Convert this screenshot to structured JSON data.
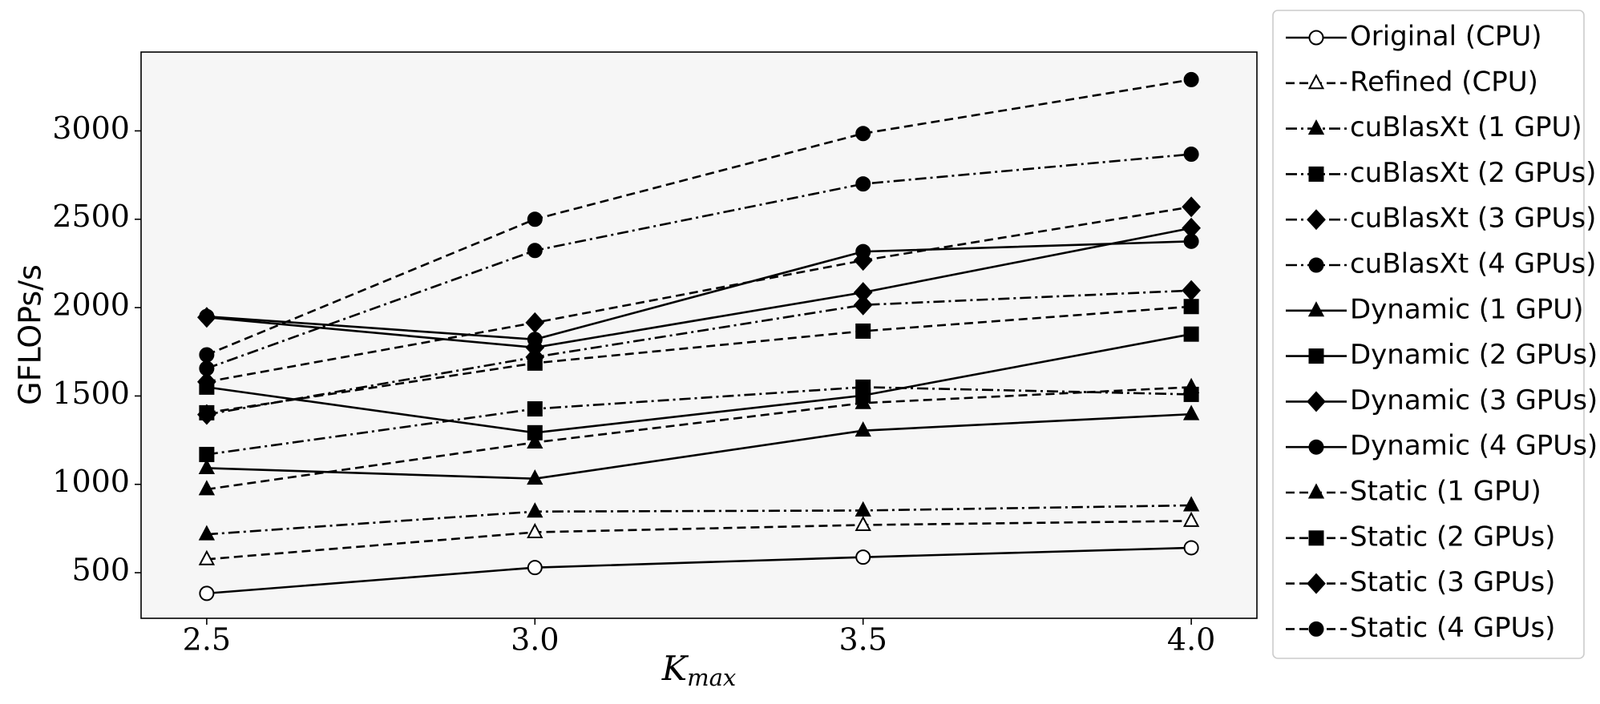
{
  "chart_data": {
    "type": "line",
    "xlabel": "K",
    "xlabel_subscript": "max",
    "ylabel": "GFLOPs/s",
    "x": [
      2.5,
      3.0,
      3.5,
      4.0
    ],
    "xlim": [
      2.4,
      4.1
    ],
    "xticks": [
      2.5,
      {
        "value": 3.0,
        "label": "3.0"
      },
      3.5,
      {
        "value": 4.0,
        "label": "4.0"
      }
    ],
    "ylim": [
      242,
      3446
    ],
    "yticks": [
      500,
      1000,
      1500,
      2000,
      2500,
      3000
    ],
    "legend": "outside-right",
    "series": [
      {
        "name": "Original (CPU)",
        "color": "#000000",
        "dash": "solid",
        "marker": "open-circle",
        "values": [
          383,
          529,
          588,
          641
        ]
      },
      {
        "name": "Refined (CPU)",
        "color": "#000000",
        "dash": "dashed",
        "marker": "open-triangle",
        "values": [
          576,
          729,
          770,
          793
        ]
      },
      {
        "name": "cuBlasXt (1 GPU)",
        "color": "#000000",
        "dash": "dashdot",
        "marker": "triangle",
        "values": [
          717,
          846,
          852,
          881
        ]
      },
      {
        "name": "cuBlasXt (2 GPUs)",
        "color": "#000000",
        "dash": "dashdot",
        "marker": "square",
        "values": [
          1169,
          1427,
          1550,
          1509
        ]
      },
      {
        "name": "cuBlasXt (3 GPUs)",
        "color": "#000000",
        "dash": "dashdot",
        "marker": "diamond",
        "values": [
          1395,
          1720,
          2015,
          2097
        ]
      },
      {
        "name": "cuBlasXt (4 GPUs)",
        "color": "#000000",
        "dash": "dashdot",
        "marker": "circle",
        "values": [
          1656,
          2323,
          2700,
          2868
        ]
      },
      {
        "name": "Dynamic (1 GPU)",
        "color": "#000000",
        "dash": "solid",
        "marker": "triangle",
        "values": [
          1092,
          1032,
          1304,
          1397
        ]
      },
      {
        "name": "Dynamic (2 GPUs)",
        "color": "#000000",
        "dash": "solid",
        "marker": "square",
        "values": [
          1550,
          1292,
          1503,
          1850
        ]
      },
      {
        "name": "Dynamic (3 GPUs)",
        "color": "#000000",
        "dash": "solid",
        "marker": "diamond",
        "values": [
          1945,
          1774,
          2086,
          2450
        ]
      },
      {
        "name": "Dynamic (4 GPUs)",
        "color": "#000000",
        "dash": "solid",
        "marker": "circle",
        "values": [
          1950,
          1820,
          2317,
          2375
        ]
      },
      {
        "name": "Static (1 GPU)",
        "color": "#000000",
        "dash": "dashed",
        "marker": "triangle",
        "values": [
          972,
          1237,
          1460,
          1550
        ]
      },
      {
        "name": "Static (2 GPUs)",
        "color": "#000000",
        "dash": "dashed",
        "marker": "square",
        "values": [
          1405,
          1686,
          1867,
          2006
        ]
      },
      {
        "name": "Static (3 GPUs)",
        "color": "#000000",
        "dash": "dashed",
        "marker": "diamond",
        "values": [
          1580,
          1915,
          2267,
          2570
        ]
      },
      {
        "name": "Static (4 GPUs)",
        "color": "#000000",
        "dash": "dashed",
        "marker": "circle",
        "values": [
          1733,
          2500,
          2985,
          3290
        ]
      }
    ]
  }
}
